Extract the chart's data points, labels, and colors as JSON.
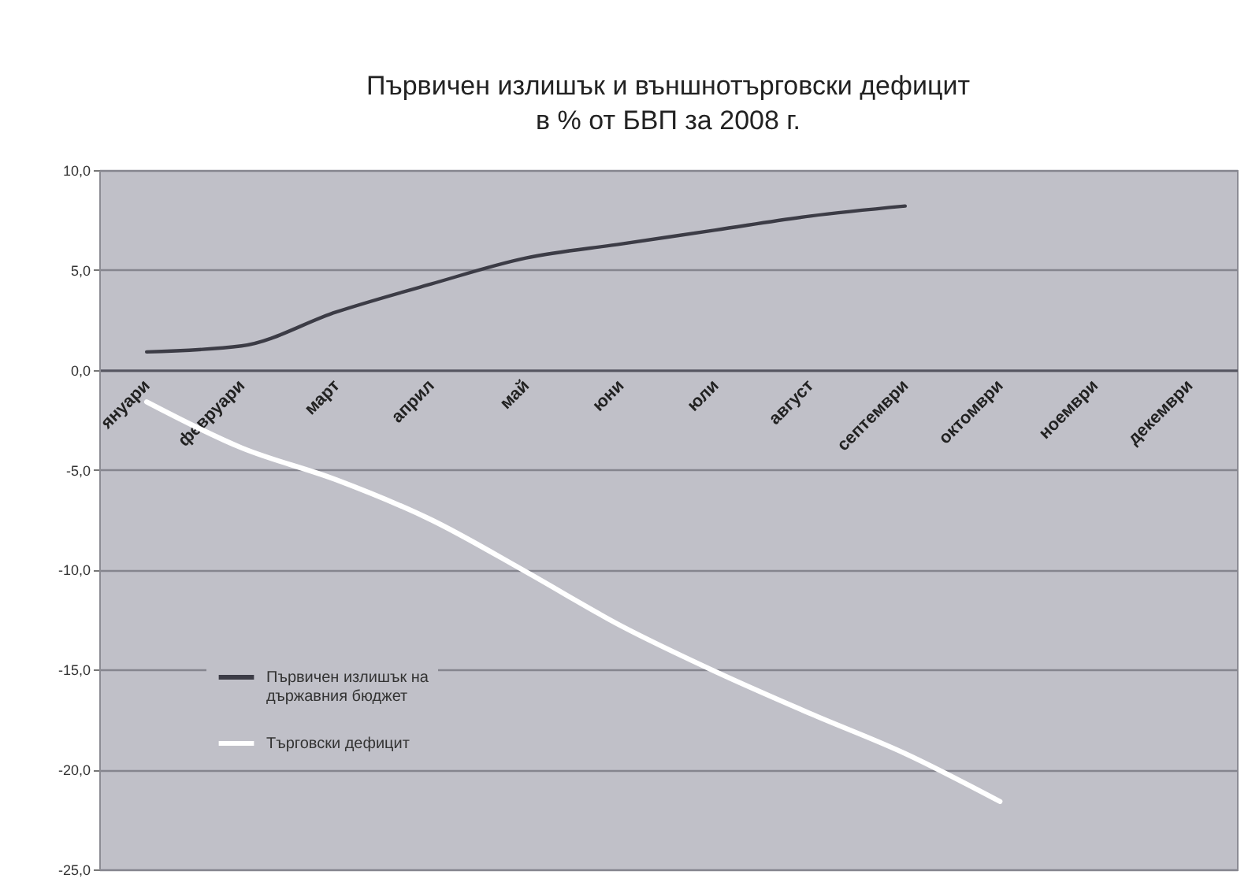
{
  "chart_data": {
    "type": "line",
    "title": "Първичен излишък и външнотърговски дефицит\nв % от БВП за 2008 г.",
    "categories": [
      "януари",
      "февруари",
      "март",
      "април",
      "май",
      "юни",
      "юли",
      "август",
      "септември",
      "октомври",
      "ноември",
      "декември"
    ],
    "series": [
      {
        "name": "Първичен излишък на държавния бюджет",
        "color": "#3c3c46",
        "values": [
          0.9,
          1.2,
          2.9,
          4.3,
          5.6,
          6.3,
          7.0,
          7.7,
          8.2,
          null,
          null,
          null
        ]
      },
      {
        "name": "Търговски дефицит",
        "color": "#ffffff",
        "values": [
          -1.6,
          -3.9,
          -5.5,
          -7.5,
          -10.1,
          -12.8,
          -15.1,
          -17.2,
          -19.2,
          -21.6,
          null,
          null
        ]
      }
    ],
    "ylim": [
      -25,
      10
    ],
    "yticks": [
      {
        "value": 10,
        "label": "10,0"
      },
      {
        "value": 5,
        "label": "5,0"
      },
      {
        "value": 0,
        "label": "0,0"
      },
      {
        "value": -5,
        "label": "-5,0"
      },
      {
        "value": -10,
        "label": "-10,0"
      },
      {
        "value": -15,
        "label": "-15,0"
      },
      {
        "value": -20,
        "label": "-20,0"
      },
      {
        "value": -25,
        "label": "-25,0"
      }
    ],
    "grid": "y",
    "legend": "bottom left"
  }
}
